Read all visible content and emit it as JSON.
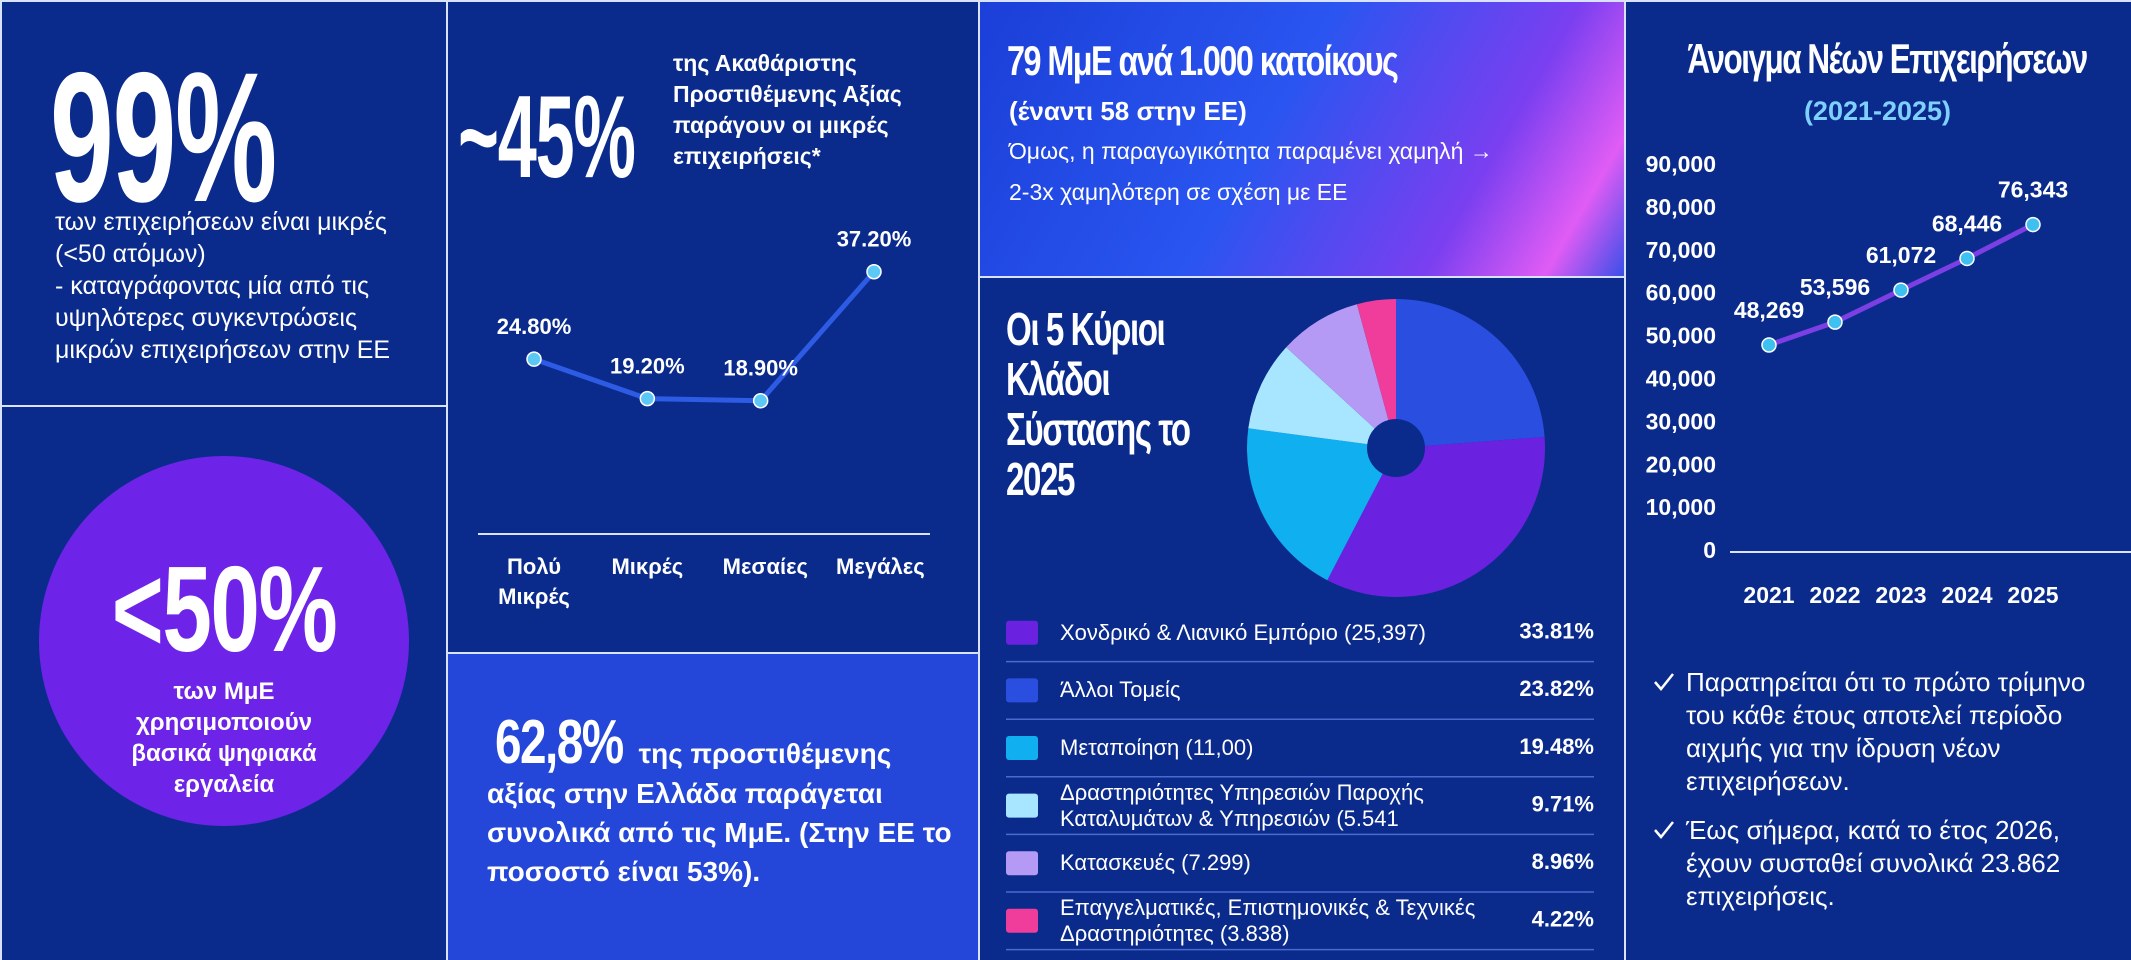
{
  "small_share": {
    "figure": "99%",
    "text": [
      "των επιχειρήσεων είναι μικρές",
      "(<50 ατόμων)",
      "- καταγράφοντας μία από τις υψηλότερες συγκεντρώσεις μικρών επιχειρήσεων στην ΕΕ"
    ]
  },
  "digital": {
    "figure": "<50%",
    "text": "των ΜμΕ χρησιμοποιούν βασικά ψηφιακά εργαλεία"
  },
  "gva_small": {
    "figure": "~45%",
    "text": "της Ακαθάριστης Προστιθέμενης Αξίας παράγουν οι μικρές επιχειρήσεις*"
  },
  "gva_sme": {
    "figure": "62,8%",
    "text": "της προστιθέμενης αξίας στην Ελλάδα παράγεται συνολικά από τις ΜμΕ. (Στην ΕΕ το ποσοστό είναι 53%)."
  },
  "density": {
    "title": "79 ΜμΕ ανά 1.000 κατοίκους",
    "subtitle": "(έναντι 58 στην ΕΕ)",
    "text": [
      "Όμως, η παραγωγικότητα παραμένει χαμηλή →",
      "2-3x χαμηλότερη σε σχέση με ΕΕ"
    ]
  },
  "notes": [
    "Παρατηρείται ότι το πρώτο τρίμηνο του κάθε έτους αποτελεί περίοδο αιχμής για την ίδρυση νέων επιχειρήσεων.",
    "Έως σήμερα, κατά το έτος 2026, έχουν συσταθεί συνολικά 23.862 επιχειρήσεις."
  ],
  "chart_data": [
    {
      "type": "line",
      "categories": [
        "Πολύ Μικρές",
        "Μικρές",
        "Μεσαίες",
        "Μεγάλες"
      ],
      "values": [
        24.8,
        19.2,
        18.9,
        37.2
      ],
      "value_labels": [
        "24.80%",
        "19.20%",
        "18.90%",
        "37.20%"
      ],
      "color": "#2d5be3"
    },
    {
      "type": "pie",
      "title": "Οι 5 Κύριοι Κλάδοι Σύστασης το 2025",
      "categories": [
        "Χονδρικό & Λιανικό Εμπόριο (25,397)",
        "Άλλοι Τομείς",
        "Μεταποίηση (11,00)",
        "Δραστηριότητες Υπηρεσιών Παροχής Καταλυμάτων & Υπηρεσιών (5.541",
        "Κατασκευές (7.299)",
        "Επαγγελματικές, Επιστημονικές & Τεχνικές Δραστηριότητες (3.838)"
      ],
      "values": [
        33.81,
        23.82,
        19.48,
        9.71,
        8.96,
        4.22
      ],
      "value_labels": [
        "33.81%",
        "23.82%",
        "19.48%",
        "9.71%",
        "8.96%",
        "4.22%"
      ],
      "colors": [
        "#6a22e0",
        "#2a4fe0",
        "#10b0f0",
        "#a8e6ff",
        "#b59af5",
        "#f03c9a"
      ]
    },
    {
      "type": "line",
      "title": "Άνοιγμα Νέων Επιχειρήσεων",
      "subtitle": "(2021-2025)",
      "categories": [
        "2021",
        "2022",
        "2023",
        "2024",
        "2025"
      ],
      "values": [
        48269,
        53596,
        61072,
        68446,
        76343
      ],
      "value_labels": [
        "48,269",
        "53,596",
        "61,072",
        "68,446",
        "76,343"
      ],
      "color": "#7b3fe4",
      "ylim": [
        0,
        90000
      ],
      "yticks": [
        0,
        {
          "value": 10000,
          "label": "10,000"
        },
        {
          "value": 20000,
          "label": "20,000"
        },
        {
          "value": 30000,
          "label": "30,000"
        },
        {
          "value": 40000,
          "label": "40,000"
        },
        {
          "value": 50000,
          "label": "50,000"
        },
        {
          "value": 60000,
          "label": "60,000"
        },
        {
          "value": 70000,
          "label": "70,000"
        },
        {
          "value": 80000,
          "label": "80,000"
        },
        {
          "value": 90000,
          "label": "90,000"
        }
      ]
    }
  ]
}
